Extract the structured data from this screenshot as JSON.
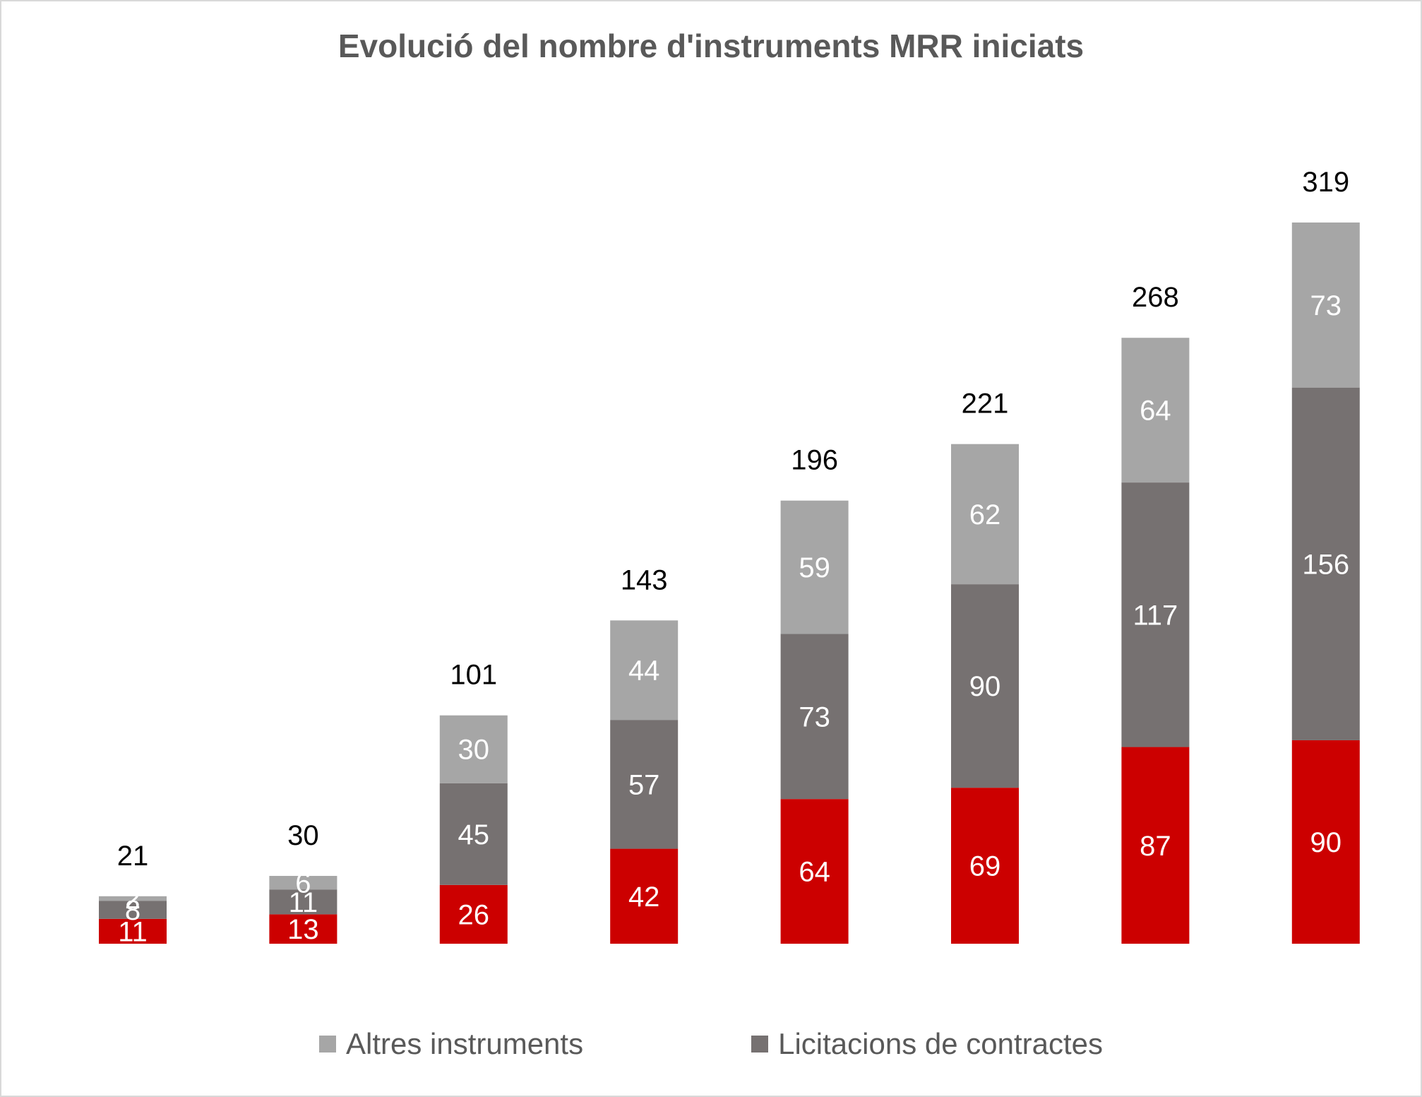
{
  "chart_data": {
    "type": "bar",
    "stacked": true,
    "title": "Evolució del nombre d'instruments MRR iniciats",
    "xlabel": "",
    "ylabel": "",
    "ylim": [
      0,
      319
    ],
    "categories": [
      "",
      "",
      "",
      "",
      "",
      "",
      "",
      ""
    ],
    "series": [
      {
        "name": "",
        "color": "#cc0000",
        "values": [
          11,
          13,
          26,
          42,
          64,
          69,
          87,
          90
        ]
      },
      {
        "name": "Licitacions de contractes",
        "color": "#767171",
        "values": [
          8,
          11,
          45,
          57,
          73,
          90,
          117,
          156
        ]
      },
      {
        "name": "Altres instruments",
        "color": "#a6a6a6",
        "values": [
          2,
          6,
          30,
          44,
          59,
          62,
          64,
          73
        ]
      }
    ],
    "totals": [
      21,
      30,
      101,
      143,
      196,
      221,
      268,
      319
    ],
    "legend": {
      "position": "bottom",
      "entries": [
        {
          "label": "Altres instruments",
          "color": "#a6a6a6"
        },
        {
          "label": "Licitacions de contractes",
          "color": "#767171"
        }
      ]
    },
    "grid": false
  }
}
